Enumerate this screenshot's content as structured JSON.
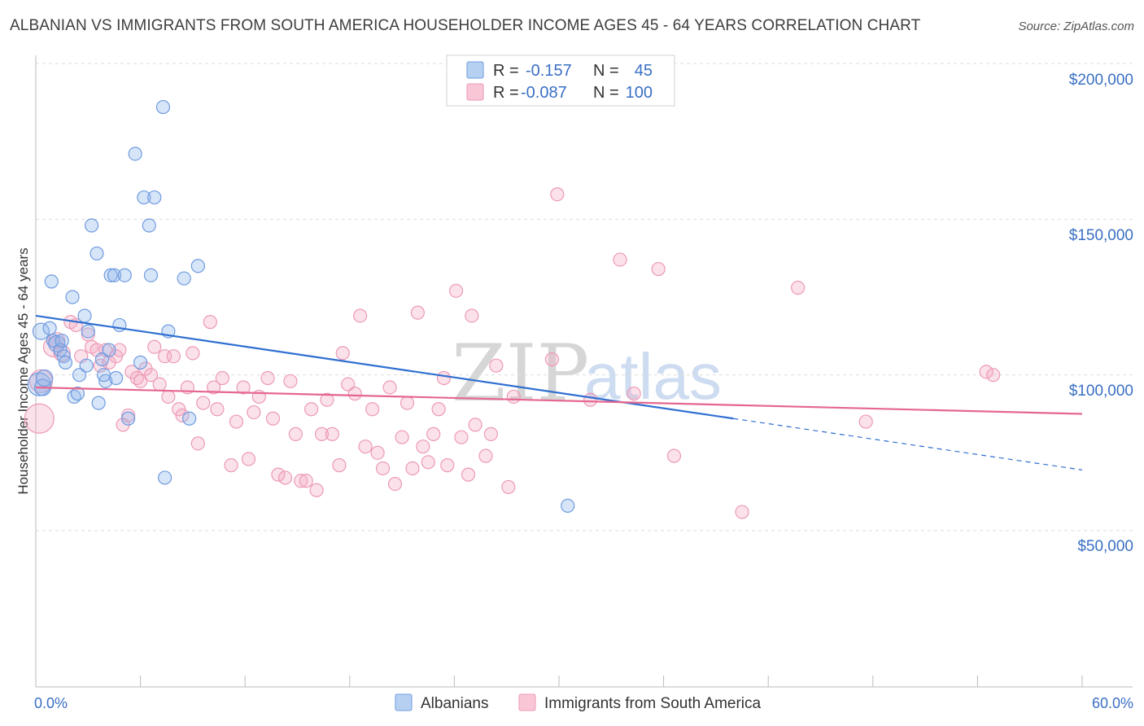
{
  "title": "ALBANIAN VS IMMIGRANTS FROM SOUTH AMERICA HOUSEHOLDER INCOME AGES 45 - 64 YEARS CORRELATION CHART",
  "source": "Source: ZipAtlas.com",
  "watermark": {
    "zip": "ZIP",
    "atlas": "atlas"
  },
  "legend_top": {
    "rows": [
      {
        "r_label": "R =",
        "r_value": "-0.157",
        "n_label": "N =",
        "n_value": "45"
      },
      {
        "r_label": "R =",
        "r_value": "-0.087",
        "n_label": "N =",
        "n_value": "100"
      }
    ]
  },
  "legend_bottom": {
    "series1": "Albanians",
    "series2": "Immigrants from South America"
  },
  "chart_data": {
    "type": "scatter",
    "title": "ALBANIAN VS IMMIGRANTS FROM SOUTH AMERICA HOUSEHOLDER INCOME AGES 45 - 64 YEARS CORRELATION CHART",
    "xlabel": "",
    "ylabel": "Householder Income Ages 45 - 64 years",
    "xlim": [
      0,
      60
    ],
    "ylim": [
      5000,
      210000
    ],
    "x_tick_labels": [
      "0.0%",
      "60.0%"
    ],
    "y_ticks": [
      50000,
      100000,
      150000,
      200000
    ],
    "y_tick_labels": [
      "$50,000",
      "$100,000",
      "$150,000",
      "$200,000"
    ],
    "colors": {
      "albanians": "#7aa6e0",
      "albanians_line": "#2f6fd1",
      "south_america": "#f0a0bb",
      "south_america_line": "#e5678f"
    },
    "series": [
      {
        "name": "Albanians",
        "r": -0.157,
        "n": 45,
        "trend": {
          "x0": 0.0,
          "y0": 119000,
          "x1": 60.0,
          "y1": 69500,
          "solid_until_x": 40.0
        },
        "points": [
          [
            0.2,
            97000,
            14
          ],
          [
            0.3,
            114000,
            10
          ],
          [
            0.4,
            96000,
            10
          ],
          [
            0.5,
            99000,
            10
          ],
          [
            0.8,
            115000,
            8
          ],
          [
            0.9,
            130000,
            8
          ],
          [
            1.0,
            111000,
            8
          ],
          [
            1.2,
            110000,
            10
          ],
          [
            1.4,
            108000,
            8
          ],
          [
            1.5,
            111000,
            8
          ],
          [
            1.6,
            106000,
            8
          ],
          [
            1.7,
            104000,
            8
          ],
          [
            2.1,
            125000,
            8
          ],
          [
            2.2,
            93000,
            8
          ],
          [
            2.4,
            94000,
            8
          ],
          [
            2.5,
            100000,
            8
          ],
          [
            2.8,
            119000,
            8
          ],
          [
            2.9,
            103000,
            8
          ],
          [
            3.0,
            114000,
            8
          ],
          [
            3.2,
            148000,
            8
          ],
          [
            3.5,
            139000,
            8
          ],
          [
            3.6,
            91000,
            8
          ],
          [
            3.8,
            105000,
            8
          ],
          [
            4.0,
            98000,
            8
          ],
          [
            4.2,
            108000,
            8
          ],
          [
            4.3,
            132000,
            8
          ],
          [
            4.5,
            132000,
            8
          ],
          [
            4.6,
            99000,
            8
          ],
          [
            4.8,
            116000,
            8
          ],
          [
            5.1,
            132000,
            8
          ],
          [
            5.3,
            86000,
            8
          ],
          [
            5.7,
            171000,
            8
          ],
          [
            6.0,
            104000,
            8
          ],
          [
            6.2,
            157000,
            8
          ],
          [
            6.5,
            148000,
            8
          ],
          [
            6.6,
            132000,
            8
          ],
          [
            6.8,
            157000,
            8
          ],
          [
            7.3,
            186000,
            8
          ],
          [
            7.4,
            67000,
            8
          ],
          [
            7.6,
            114000,
            8
          ],
          [
            8.5,
            131000,
            8
          ],
          [
            8.8,
            86000,
            8
          ],
          [
            9.3,
            135000,
            8
          ],
          [
            3.9,
            100000,
            8
          ],
          [
            30.5,
            58000,
            8
          ]
        ]
      },
      {
        "name": "Immigrants from South America",
        "r": -0.087,
        "n": 100,
        "trend": {
          "x0": 0.0,
          "y0": 96000,
          "x1": 60.0,
          "y1": 87500
        },
        "points": [
          [
            0.2,
            86000,
            18
          ],
          [
            0.3,
            98000,
            14
          ],
          [
            1.0,
            109000,
            12
          ],
          [
            1.2,
            111000,
            10
          ],
          [
            1.5,
            107000,
            10
          ],
          [
            2.0,
            117000,
            8
          ],
          [
            2.3,
            116000,
            8
          ],
          [
            2.6,
            106000,
            8
          ],
          [
            3.0,
            113000,
            8
          ],
          [
            3.2,
            109000,
            8
          ],
          [
            3.5,
            108000,
            8
          ],
          [
            3.7,
            103000,
            8
          ],
          [
            4.0,
            108000,
            8
          ],
          [
            4.2,
            104000,
            8
          ],
          [
            4.6,
            106000,
            8
          ],
          [
            4.8,
            108000,
            8
          ],
          [
            5.0,
            84000,
            8
          ],
          [
            5.3,
            87000,
            8
          ],
          [
            5.5,
            101000,
            8
          ],
          [
            5.8,
            99000,
            8
          ],
          [
            6.0,
            98000,
            8
          ],
          [
            6.3,
            102000,
            8
          ],
          [
            6.6,
            100000,
            8
          ],
          [
            6.8,
            109000,
            8
          ],
          [
            7.1,
            97000,
            8
          ],
          [
            7.4,
            106000,
            8
          ],
          [
            7.6,
            93000,
            8
          ],
          [
            7.9,
            106000,
            8
          ],
          [
            8.2,
            89000,
            8
          ],
          [
            8.4,
            87000,
            8
          ],
          [
            8.7,
            96000,
            8
          ],
          [
            9.0,
            107000,
            8
          ],
          [
            9.3,
            78000,
            8
          ],
          [
            9.6,
            91000,
            8
          ],
          [
            10.0,
            117000,
            8
          ],
          [
            10.2,
            96000,
            8
          ],
          [
            10.4,
            89000,
            8
          ],
          [
            10.7,
            99000,
            8
          ],
          [
            11.2,
            71000,
            8
          ],
          [
            11.5,
            85000,
            8
          ],
          [
            11.9,
            96000,
            8
          ],
          [
            12.2,
            73000,
            8
          ],
          [
            12.5,
            88000,
            8
          ],
          [
            12.8,
            93000,
            8
          ],
          [
            13.3,
            99000,
            8
          ],
          [
            13.6,
            86000,
            8
          ],
          [
            13.9,
            68000,
            8
          ],
          [
            14.3,
            67000,
            8
          ],
          [
            14.6,
            98000,
            8
          ],
          [
            14.9,
            81000,
            8
          ],
          [
            15.2,
            66000,
            8
          ],
          [
            15.5,
            66000,
            8
          ],
          [
            15.8,
            89000,
            8
          ],
          [
            16.1,
            63000,
            8
          ],
          [
            16.4,
            81000,
            8
          ],
          [
            16.7,
            92000,
            8
          ],
          [
            17.0,
            81000,
            8
          ],
          [
            17.4,
            71000,
            8
          ],
          [
            17.6,
            107000,
            8
          ],
          [
            17.9,
            97000,
            8
          ],
          [
            18.3,
            94000,
            8
          ],
          [
            18.6,
            119000,
            8
          ],
          [
            18.9,
            77000,
            8
          ],
          [
            19.3,
            89000,
            8
          ],
          [
            19.6,
            75000,
            8
          ],
          [
            19.9,
            70000,
            8
          ],
          [
            20.3,
            96000,
            8
          ],
          [
            20.6,
            65000,
            8
          ],
          [
            21.0,
            80000,
            8
          ],
          [
            21.3,
            91000,
            8
          ],
          [
            21.6,
            70000,
            8
          ],
          [
            21.9,
            120000,
            8
          ],
          [
            22.2,
            77000,
            8
          ],
          [
            22.5,
            72000,
            8
          ],
          [
            22.8,
            81000,
            8
          ],
          [
            23.1,
            89000,
            8
          ],
          [
            23.4,
            99000,
            8
          ],
          [
            23.6,
            71000,
            8
          ],
          [
            24.1,
            127000,
            8
          ],
          [
            24.4,
            80000,
            8
          ],
          [
            24.8,
            68000,
            8
          ],
          [
            25.0,
            119000,
            8
          ],
          [
            25.2,
            84000,
            8
          ],
          [
            25.8,
            74000,
            8
          ],
          [
            26.1,
            81000,
            8
          ],
          [
            26.4,
            103000,
            8
          ],
          [
            27.1,
            64000,
            8
          ],
          [
            27.4,
            93000,
            8
          ],
          [
            29.6,
            105000,
            8
          ],
          [
            29.9,
            158000,
            8
          ],
          [
            31.8,
            92000,
            8
          ],
          [
            33.5,
            137000,
            8
          ],
          [
            34.3,
            94000,
            8
          ],
          [
            35.7,
            134000,
            8
          ],
          [
            36.6,
            74000,
            8
          ],
          [
            40.5,
            56000,
            8
          ],
          [
            43.7,
            128000,
            8
          ],
          [
            47.6,
            85000,
            8
          ],
          [
            54.5,
            101000,
            8
          ],
          [
            54.9,
            100000,
            8
          ]
        ]
      }
    ]
  }
}
